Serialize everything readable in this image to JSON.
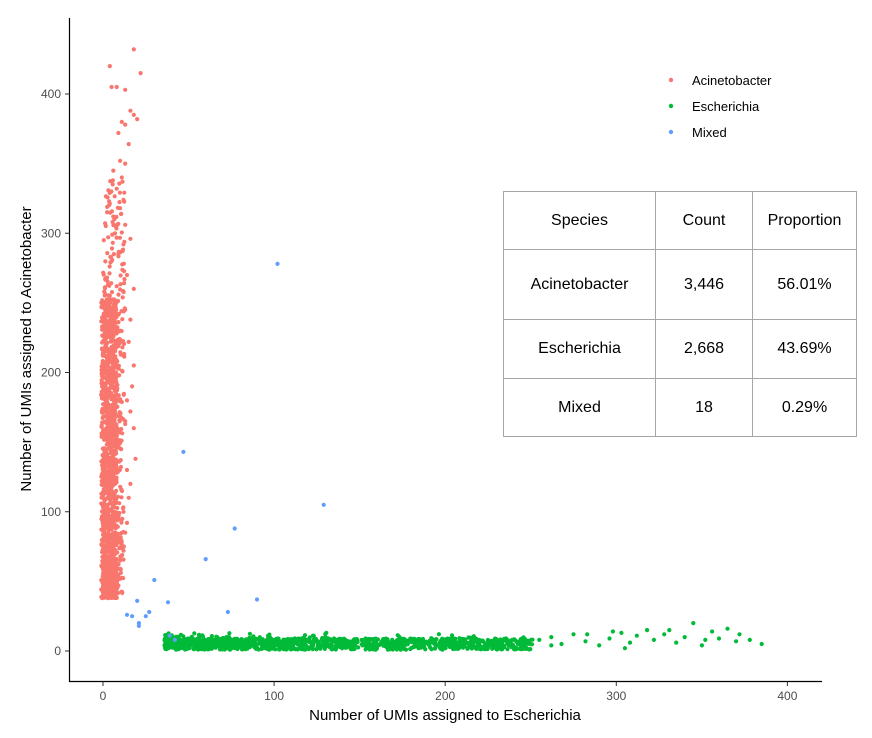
{
  "chart_data": {
    "type": "scatter",
    "xlabel": "Number of UMIs assigned to Escherichia",
    "ylabel": "Number of UMIs assigned to Acinetobacter",
    "xlim": [
      -20,
      420
    ],
    "ylim": [
      -22,
      455
    ],
    "xticks": [
      0,
      100,
      200,
      300,
      400
    ],
    "yticks": [
      0,
      100,
      200,
      300,
      400
    ],
    "grid": false,
    "legend_position": "top-right",
    "series": [
      {
        "name": "Acinetobacter",
        "color": "#F8766D",
        "summary": "dense vertical band: x 0-12, y 38-250, sparse up to 432",
        "points": [
          [
            18,
            432
          ],
          [
            4,
            420
          ],
          [
            22,
            415
          ],
          [
            5,
            405
          ],
          [
            8,
            405
          ],
          [
            13,
            403
          ],
          [
            16,
            388
          ],
          [
            18,
            385
          ],
          [
            20,
            382
          ],
          [
            11,
            380
          ],
          [
            13,
            378
          ],
          [
            9,
            372
          ],
          [
            15,
            364
          ],
          [
            10,
            352
          ],
          [
            13,
            350
          ],
          [
            6,
            345
          ],
          [
            11,
            340
          ],
          [
            8,
            332
          ],
          [
            12,
            324
          ],
          [
            10,
            318
          ],
          [
            6,
            312
          ],
          [
            7,
            300
          ],
          [
            16,
            296
          ],
          [
            12,
            292
          ],
          [
            9,
            285
          ],
          [
            5,
            280
          ],
          [
            14,
            270
          ],
          [
            8,
            262
          ],
          [
            18,
            260
          ],
          [
            4,
            255
          ],
          [
            13,
            245
          ],
          [
            16,
            238
          ],
          [
            10,
            230
          ],
          [
            15,
            222
          ],
          [
            12,
            212
          ],
          [
            18,
            205
          ],
          [
            9,
            198
          ],
          [
            17,
            190
          ],
          [
            14,
            180
          ],
          [
            16,
            172
          ],
          [
            13,
            165
          ],
          [
            18,
            160
          ],
          [
            19,
            138
          ],
          [
            14,
            130
          ],
          [
            16,
            120
          ],
          [
            15,
            110
          ],
          [
            12,
            100
          ],
          [
            14,
            92
          ],
          [
            13,
            85
          ],
          [
            11,
            78
          ],
          [
            12,
            72
          ],
          [
            10,
            65
          ],
          [
            8,
            58
          ],
          [
            10,
            52
          ],
          [
            9,
            47
          ]
        ]
      },
      {
        "name": "Escherichia",
        "color": "#00BA38",
        "summary": "dense horizontal band: x 35-250, y 2-12, sparse up to 385",
        "points": [
          [
            255,
            8
          ],
          [
            262,
            10
          ],
          [
            268,
            5
          ],
          [
            275,
            12
          ],
          [
            282,
            7
          ],
          [
            290,
            4
          ],
          [
            296,
            9
          ],
          [
            303,
            13
          ],
          [
            308,
            6
          ],
          [
            312,
            11
          ],
          [
            318,
            15
          ],
          [
            322,
            8
          ],
          [
            328,
            12
          ],
          [
            335,
            6
          ],
          [
            340,
            10
          ],
          [
            345,
            20
          ],
          [
            350,
            4
          ],
          [
            356,
            14
          ],
          [
            360,
            9
          ],
          [
            365,
            16
          ],
          [
            370,
            7
          ],
          [
            372,
            12
          ],
          [
            378,
            8
          ],
          [
            385,
            5
          ],
          [
            262,
            4
          ],
          [
            283,
            12
          ],
          [
            298,
            14
          ],
          [
            305,
            2
          ],
          [
            331,
            15
          ],
          [
            352,
            8
          ]
        ]
      },
      {
        "name": "Mixed",
        "color": "#619CFF",
        "points": [
          [
            102,
            278
          ],
          [
            47,
            143
          ],
          [
            129,
            105
          ],
          [
            77,
            88
          ],
          [
            60,
            66
          ],
          [
            30,
            51
          ],
          [
            90,
            37
          ],
          [
            38,
            35
          ],
          [
            73,
            28
          ],
          [
            20,
            36
          ],
          [
            27,
            28
          ],
          [
            14,
            26
          ],
          [
            17,
            25
          ],
          [
            25,
            25
          ],
          [
            21,
            20
          ],
          [
            21,
            18
          ],
          [
            39,
            11
          ],
          [
            42,
            8
          ]
        ]
      }
    ]
  },
  "table": {
    "headers": [
      "Species",
      "Count",
      "Proportion"
    ],
    "rows": [
      [
        "Acinetobacter",
        "3,446",
        "56.01%"
      ],
      [
        "Escherichia",
        "2,668",
        "43.69%"
      ],
      [
        "Mixed",
        "18",
        "0.29%"
      ]
    ]
  }
}
